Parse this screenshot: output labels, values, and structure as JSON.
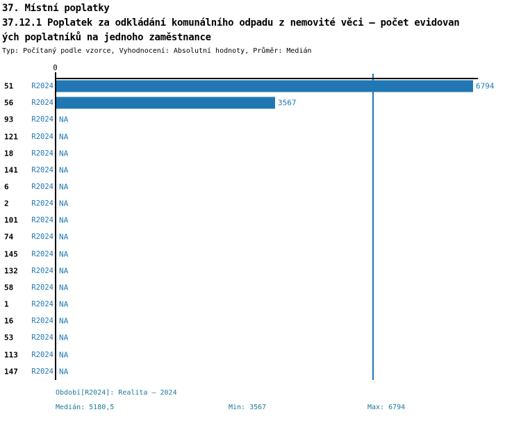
{
  "title": {
    "line1": "37. Místní poplatky",
    "line2": "37.12.1 Poplatek za odkládání komunálního odpadu z nemovité věci – počet evidovan",
    "line3": "ých poplatníků na jednoho zaměstnance",
    "subtitle": "Typ: Počítaný podle vzorce, Vyhodnocení: Absolutní hodnoty, Průměr: Medián"
  },
  "chart_data": {
    "type": "bar",
    "orientation": "horizontal",
    "title": "37.12.1 Poplatek za odkládání komunálního odpadu z nemovité věci – počet evidovaných poplatníků na jednoho zaměstnance",
    "xlabel": "",
    "ylabel": "",
    "xlim": [
      0,
      6794
    ],
    "origin_tick_label": "0",
    "series_label": "R2024",
    "na_label": "NA",
    "median_value": 5180.5,
    "bar_color": "#2077B4",
    "axis_color": "#000000",
    "grid": false,
    "legend": false,
    "categories": [
      "51",
      "56",
      "93",
      "121",
      "18",
      "141",
      "6",
      "2",
      "101",
      "74",
      "145",
      "132",
      "58",
      "1",
      "16",
      "53",
      "113",
      "147"
    ],
    "values": [
      6794,
      3567,
      null,
      null,
      null,
      null,
      null,
      null,
      null,
      null,
      null,
      null,
      null,
      null,
      null,
      null,
      null,
      null
    ]
  },
  "footer": {
    "period": "Období[R2024]: Realita – 2024",
    "median": "Medián: 5180,5",
    "min": "Min: 3567",
    "max": "Max: 6794"
  }
}
